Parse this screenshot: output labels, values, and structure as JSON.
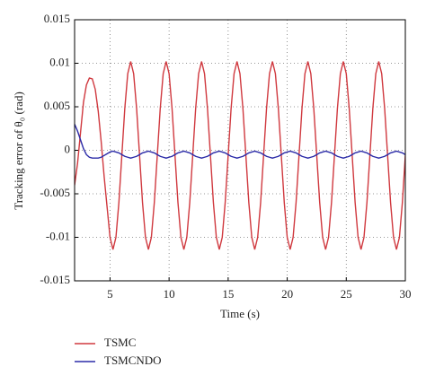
{
  "chart_data": {
    "type": "line",
    "xlabel": "Time (s)",
    "ylabel": "Tracking error of θ₀ (rad)",
    "xlim": [
      2,
      30
    ],
    "xticks": [
      5,
      10,
      15,
      20,
      25,
      30
    ],
    "ylim": [
      -0.015,
      0.015
    ],
    "yticks": [
      -0.015,
      -0.01,
      -0.005,
      0,
      0.005,
      0.01,
      0.015
    ],
    "grid": true,
    "legend": "below",
    "x": [
      2,
      2.25,
      2.5,
      2.75,
      3,
      3.25,
      3.5,
      3.75,
      4,
      4.25,
      4.5,
      4.75,
      5,
      5.25,
      5.5,
      5.75,
      6,
      6.25,
      6.5,
      6.75,
      7,
      7.25,
      7.5,
      7.75,
      8,
      8.25,
      8.5,
      8.75,
      9,
      9.25,
      9.5,
      9.75,
      10,
      10.25,
      10.5,
      10.75,
      11,
      11.25,
      11.5,
      11.75,
      12,
      12.25,
      12.5,
      12.75,
      13,
      13.25,
      13.5,
      13.75,
      14,
      14.25,
      14.5,
      14.75,
      15,
      15.25,
      15.5,
      15.75,
      16,
      16.25,
      16.5,
      16.75,
      17,
      17.25,
      17.5,
      17.75,
      18,
      18.25,
      18.5,
      18.75,
      19,
      19.25,
      19.5,
      19.75,
      20,
      20.25,
      20.5,
      20.75,
      21,
      21.25,
      21.5,
      21.75,
      22,
      22.25,
      22.5,
      22.75,
      23,
      23.25,
      23.5,
      23.75,
      24,
      24.25,
      24.5,
      24.75,
      25,
      25.25,
      25.5,
      25.75,
      26,
      26.25,
      26.5,
      26.75,
      27,
      27.25,
      27.5,
      27.75,
      28,
      28.25,
      28.5,
      28.75,
      29,
      29.25,
      29.5,
      29.75,
      30
    ],
    "series": [
      {
        "name": "TSMC",
        "color": "#d0393f",
        "values": [
          -0.004,
          -0.0015,
          0.002,
          0.0055,
          0.0075,
          0.0083,
          0.0082,
          0.007,
          0.0045,
          0.001,
          -0.003,
          -0.0065,
          -0.01,
          -0.0114,
          -0.01,
          -0.006,
          -0.0006,
          0.0048,
          0.0088,
          0.0102,
          0.0088,
          0.0048,
          -0.0006,
          -0.006,
          -0.01,
          -0.0114,
          -0.01,
          -0.006,
          -0.0006,
          0.0048,
          0.0088,
          0.0102,
          0.0088,
          0.0048,
          -0.0006,
          -0.006,
          -0.01,
          -0.0114,
          -0.01,
          -0.006,
          -0.0006,
          0.0048,
          0.0088,
          0.0102,
          0.0088,
          0.0048,
          -0.0006,
          -0.006,
          -0.01,
          -0.0114,
          -0.01,
          -0.006,
          -0.0006,
          0.0048,
          0.0088,
          0.0102,
          0.0088,
          0.0048,
          -0.0006,
          -0.006,
          -0.01,
          -0.0114,
          -0.01,
          -0.006,
          -0.0006,
          0.0048,
          0.0088,
          0.0102,
          0.0088,
          0.0048,
          -0.0006,
          -0.006,
          -0.01,
          -0.0114,
          -0.01,
          -0.006,
          -0.0006,
          0.0048,
          0.0088,
          0.0102,
          0.0088,
          0.0048,
          -0.0006,
          -0.006,
          -0.01,
          -0.0114,
          -0.01,
          -0.006,
          -0.0006,
          0.0048,
          0.0088,
          0.0102,
          0.0088,
          0.0048,
          -0.0006,
          -0.006,
          -0.01,
          -0.0114,
          -0.01,
          -0.006,
          -0.0006,
          0.0048,
          0.0088,
          0.0102,
          0.0088,
          0.0048,
          -0.0006,
          -0.006,
          -0.01,
          -0.0114,
          -0.01,
          -0.006,
          -0.0006
        ]
      },
      {
        "name": "TSMCNDO",
        "color": "#2b2ba8",
        "values": [
          0.003,
          0.0022,
          0.0012,
          0.0002,
          -0.0005,
          -0.0008,
          -0.0009,
          -0.0009,
          -0.0009,
          -0.0008,
          -0.0006,
          -0.0004,
          -0.0002,
          -0.0001,
          -0.0002,
          -0.0003,
          -0.0005,
          -0.0007,
          -0.0008,
          -0.0009,
          -0.0008,
          -0.0007,
          -0.0005,
          -0.0003,
          -0.0002,
          -0.0001,
          -0.0002,
          -0.0003,
          -0.0005,
          -0.0007,
          -0.0008,
          -0.0009,
          -0.0008,
          -0.0007,
          -0.0005,
          -0.0003,
          -0.0002,
          -0.0001,
          -0.0002,
          -0.0003,
          -0.0005,
          -0.0007,
          -0.0008,
          -0.0009,
          -0.0008,
          -0.0007,
          -0.0005,
          -0.0003,
          -0.0002,
          -0.0001,
          -0.0002,
          -0.0003,
          -0.0005,
          -0.0007,
          -0.0008,
          -0.0009,
          -0.0008,
          -0.0007,
          -0.0005,
          -0.0003,
          -0.0002,
          -0.0001,
          -0.0002,
          -0.0003,
          -0.0005,
          -0.0007,
          -0.0008,
          -0.0009,
          -0.0008,
          -0.0007,
          -0.0005,
          -0.0003,
          -0.0002,
          -0.0001,
          -0.0002,
          -0.0003,
          -0.0005,
          -0.0007,
          -0.0008,
          -0.0009,
          -0.0008,
          -0.0007,
          -0.0005,
          -0.0003,
          -0.0002,
          -0.0001,
          -0.0002,
          -0.0003,
          -0.0005,
          -0.0007,
          -0.0008,
          -0.0009,
          -0.0008,
          -0.0007,
          -0.0005,
          -0.0003,
          -0.0002,
          -0.0001,
          -0.0002,
          -0.0003,
          -0.0005,
          -0.0007,
          -0.0008,
          -0.0009,
          -0.0008,
          -0.0007,
          -0.0005,
          -0.0003,
          -0.0002,
          -0.0001,
          -0.0002,
          -0.0003,
          -0.0005
        ]
      }
    ]
  }
}
